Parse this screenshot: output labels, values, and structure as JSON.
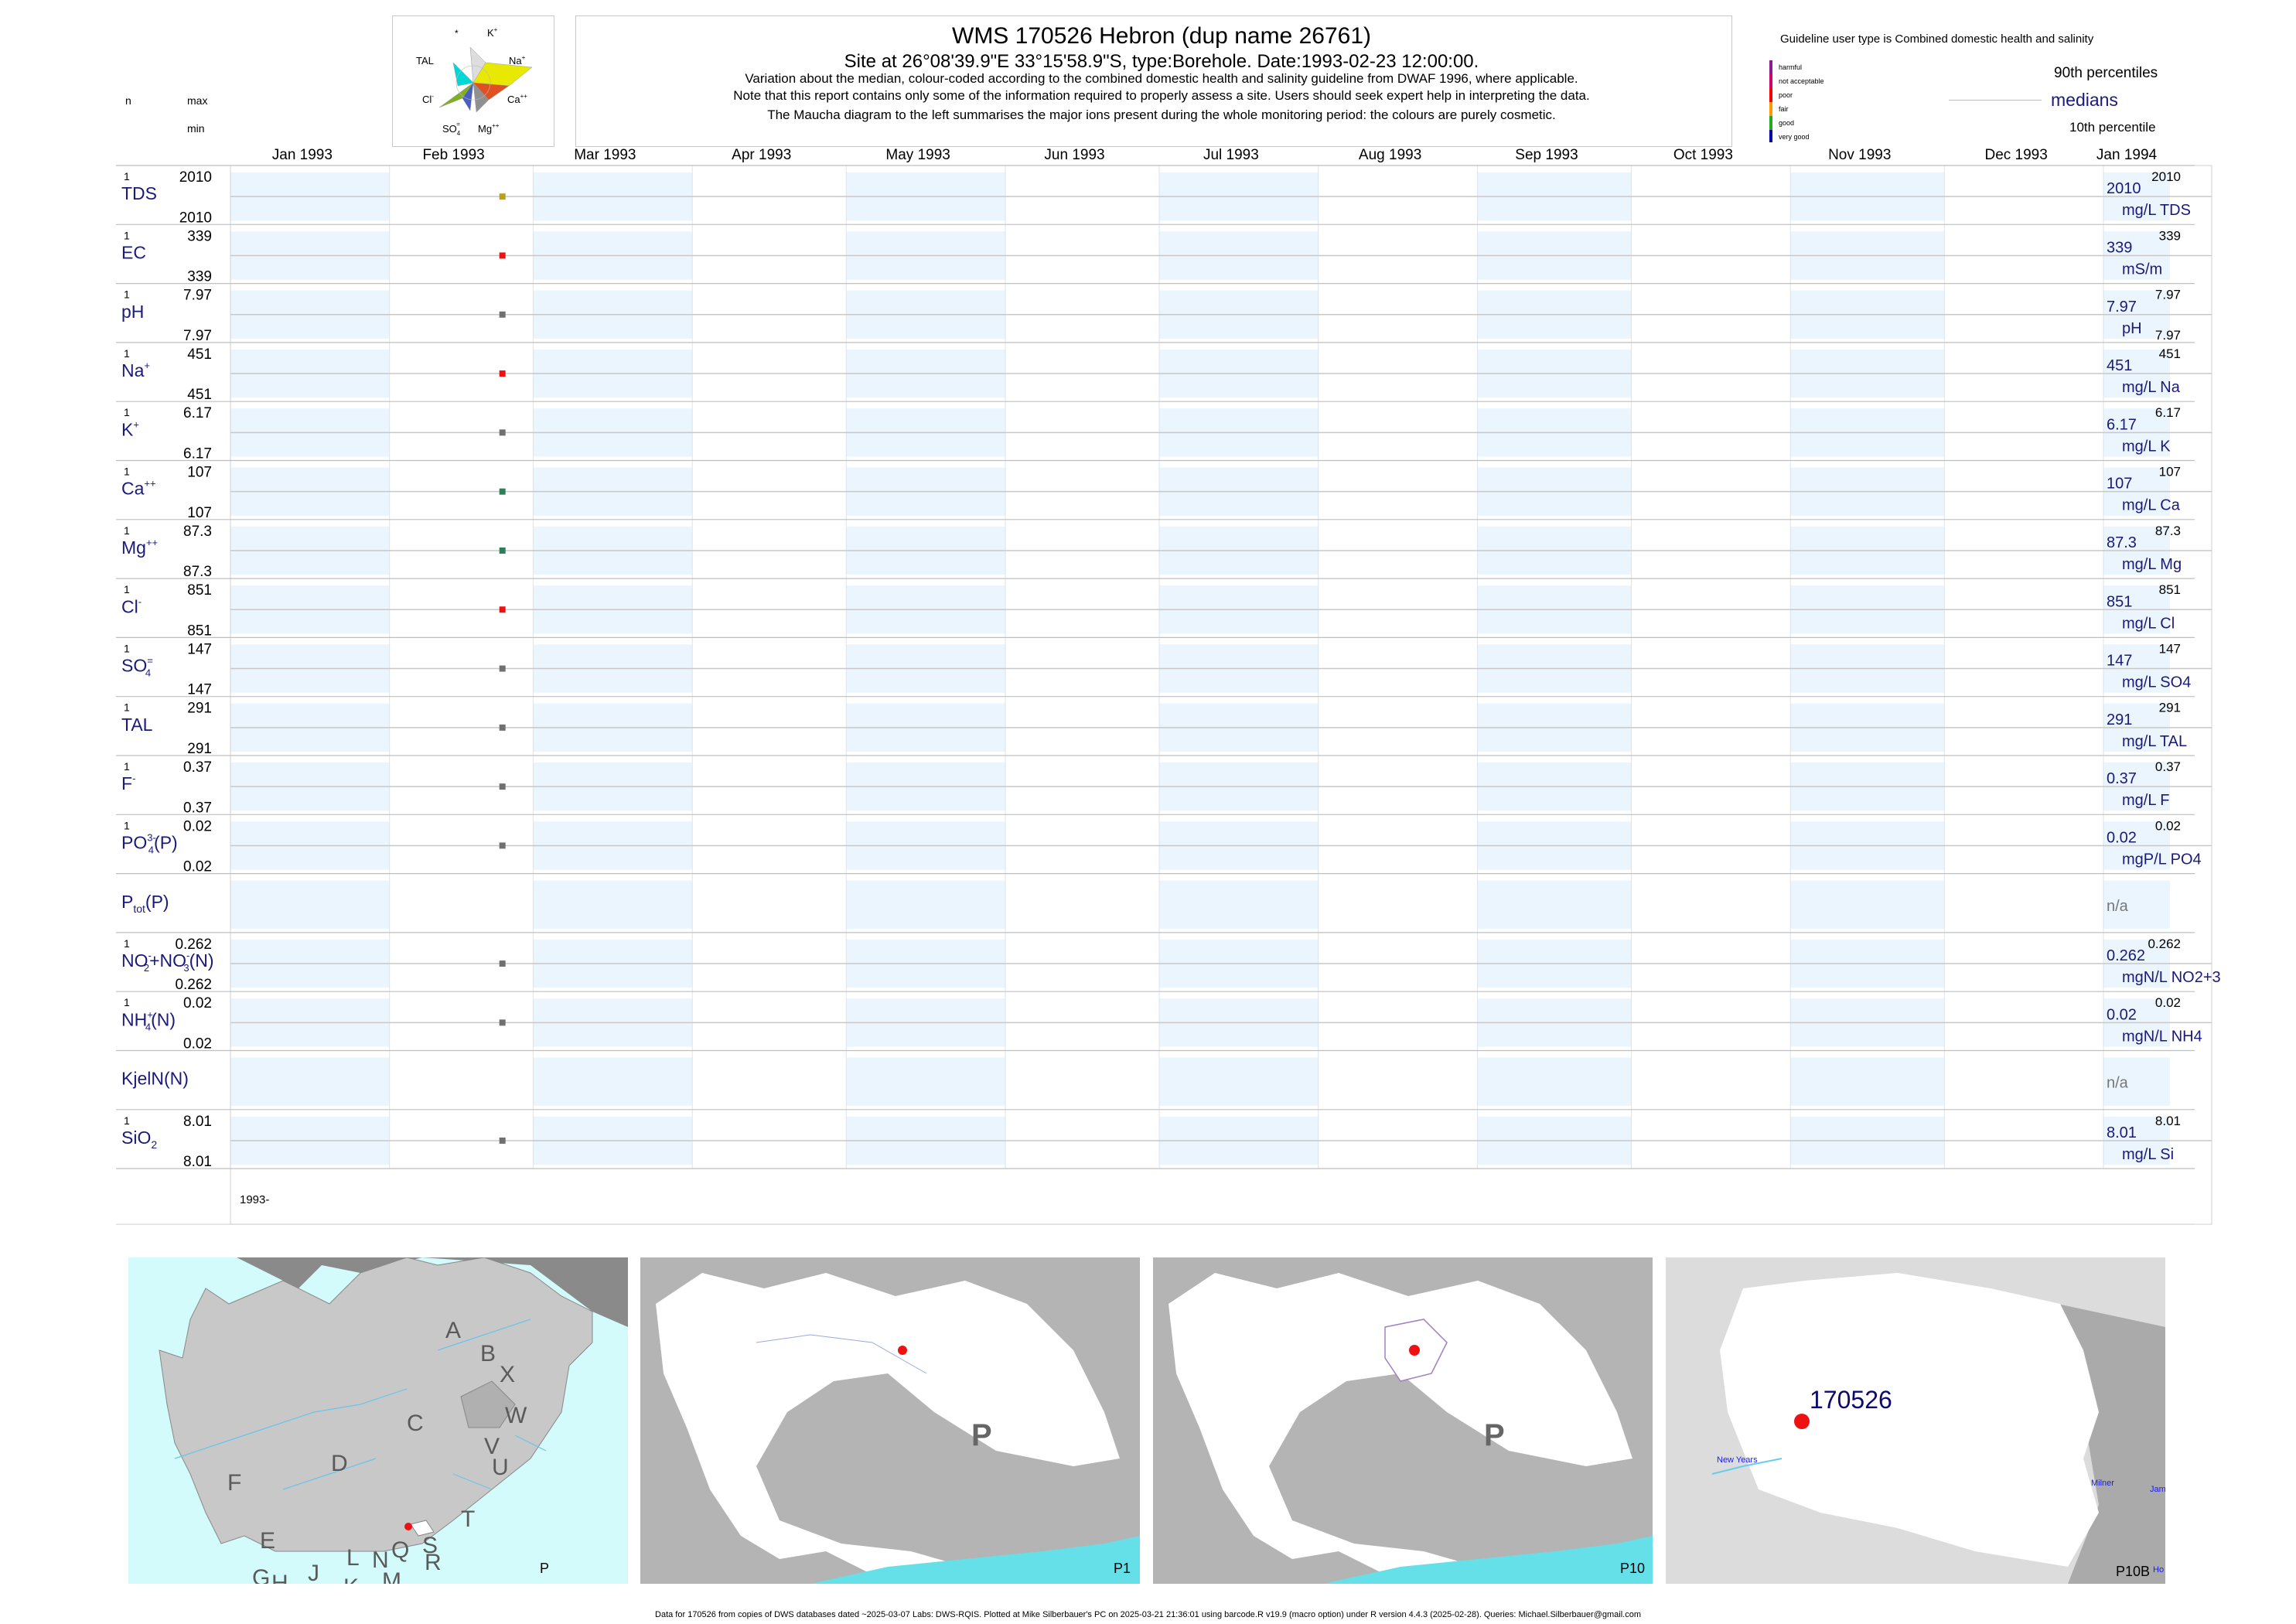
{
  "header": {
    "title": "WMS 170526  Hebron (dup name 26761)",
    "subtitle": "Site at 26°08'39.9\"E 33°15'58.9\"S, type:Borehole. Date:1993-02-23 12:00:00.",
    "note1": "Variation about the median,  colour-coded according to the combined domestic health and salinity guideline from DWAF 1996, where applicable.",
    "note2": "Note that this report contains only some of the information required to properly assess a site. Users should seek expert help in interpreting the data.",
    "note3": "The Maucha diagram to the left summarises the major ions present during the whole monitoring period: the colours are purely cosmetic."
  },
  "left_header": {
    "n": "n",
    "max": "max",
    "min": "min"
  },
  "maucha": {
    "star": "*",
    "k": "K",
    "tal": "TAL",
    "na": "Na",
    "cl": "Cl",
    "ca": "Ca",
    "so4": "SO",
    "mg": "Mg"
  },
  "guideline": {
    "title": "Guideline user type is Combined domestic health and salinity",
    "levels": [
      "harmful",
      "not acceptable",
      "poor",
      "fair",
      "good",
      "very good"
    ],
    "colors": [
      "#8e1a8e",
      "#d0006f",
      "#ff0000",
      "#ff9900",
      "#22aa22",
      "#0000aa"
    ],
    "p90": "90th percentiles",
    "medians": "medians",
    "p10": "10th percentile"
  },
  "chart_data": {
    "type": "scatter",
    "date": "1993-02-23",
    "x_range": [
      "1993-01-01",
      "1994-01-01"
    ],
    "months": [
      "Jan 1993",
      "Feb 1993",
      "Mar 1993",
      "Apr 1993",
      "May 1993",
      "Jun 1993",
      "Jul 1993",
      "Aug 1993",
      "Sep 1993",
      "Oct 1993",
      "Nov 1993",
      "Dec 1993",
      "Jan 1994"
    ],
    "year_label": "1993-",
    "rows": [
      {
        "name": "TDS",
        "sup": "",
        "sub": "",
        "n": "1",
        "max": "2010",
        "min": "2010",
        "median": "2010",
        "p90": "2010",
        "p10": "",
        "unit": "mg/L TDS",
        "color": "#b8a020"
      },
      {
        "name": "EC",
        "sup": "",
        "sub": "",
        "n": "1",
        "max": "339",
        "min": "339",
        "median": "339",
        "p90": "339",
        "p10": "",
        "unit": "mS/m",
        "color": "#ee1111"
      },
      {
        "name": "pH",
        "sup": "",
        "sub": "",
        "n": "1",
        "max": "7.97",
        "min": "7.97",
        "median": "7.97",
        "p90": "7.97",
        "p10": "7.97",
        "unit": "pH",
        "color": "#707070"
      },
      {
        "name": "Na",
        "sup": "+",
        "sub": "",
        "n": "1",
        "max": "451",
        "min": "451",
        "median": "451",
        "p90": "451",
        "p10": "",
        "unit": "mg/L Na",
        "color": "#ee1111"
      },
      {
        "name": "K",
        "sup": "+",
        "sub": "",
        "n": "1",
        "max": "6.17",
        "min": "6.17",
        "median": "6.17",
        "p90": "6.17",
        "p10": "",
        "unit": "mg/L K",
        "color": "#707070"
      },
      {
        "name": "Ca",
        "sup": "++",
        "sub": "",
        "n": "1",
        "max": "107",
        "min": "107",
        "median": "107",
        "p90": "107",
        "p10": "",
        "unit": "mg/L Ca",
        "color": "#2e7d5b"
      },
      {
        "name": "Mg",
        "sup": "++",
        "sub": "",
        "n": "1",
        "max": "87.3",
        "min": "87.3",
        "median": "87.3",
        "p90": "87.3",
        "p10": "",
        "unit": "mg/L Mg",
        "color": "#2e7d5b"
      },
      {
        "name": "Cl",
        "sup": "-",
        "sub": "",
        "n": "1",
        "max": "851",
        "min": "851",
        "median": "851",
        "p90": "851",
        "p10": "",
        "unit": "mg/L Cl",
        "color": "#ee1111"
      },
      {
        "name": "SO",
        "sup": "=",
        "sub": "4",
        "n": "1",
        "max": "147",
        "min": "147",
        "median": "147",
        "p90": "147",
        "p10": "",
        "unit": "mg/L SO4",
        "color": "#707070"
      },
      {
        "name": "TAL",
        "sup": "",
        "sub": "",
        "n": "1",
        "max": "291",
        "min": "291",
        "median": "291",
        "p90": "291",
        "p10": "",
        "unit": "mg/L TAL",
        "color": "#707070"
      },
      {
        "name": "F",
        "sup": "-",
        "sub": "",
        "n": "1",
        "max": "0.37",
        "min": "0.37",
        "median": "0.37",
        "p90": "0.37",
        "p10": "",
        "unit": "mg/L F",
        "color": "#707070"
      },
      {
        "name": "PO",
        "sup": "3-",
        "sub": "4",
        "suffix": "(P)",
        "n": "1",
        "max": "0.02",
        "min": "0.02",
        "median": "0.02",
        "p90": "0.02",
        "p10": "",
        "unit": "mgP/L PO4",
        "color": "#707070"
      },
      {
        "name": "P",
        "sup": "",
        "sub": "tot",
        "suffix": "(P)",
        "n": "",
        "max": "",
        "min": "",
        "median": "n/a",
        "p90": "",
        "p10": "",
        "unit": "",
        "color": ""
      },
      {
        "name": "NO",
        "sup": "-",
        "sub": "2",
        "suffix": "+NO",
        "sup2": "-",
        "sub2": "3",
        "suffix2": "(N)",
        "n": "1",
        "max": "0.262",
        "min": "0.262",
        "median": "0.262",
        "p90": "0.262",
        "p10": "",
        "unit": "mgN/L NO2+3",
        "color": "#707070"
      },
      {
        "name": "NH",
        "sup": "+",
        "sub": "4",
        "suffix": "(N)",
        "n": "1",
        "max": "0.02",
        "min": "0.02",
        "median": "0.02",
        "p90": "0.02",
        "p10": "",
        "unit": "mgN/L NH4",
        "color": "#707070"
      },
      {
        "name": "KjelN(N)",
        "sup": "",
        "sub": "",
        "n": "",
        "max": "",
        "min": "",
        "median": "n/a",
        "p90": "",
        "p10": "",
        "unit": "",
        "color": ""
      },
      {
        "name": "SiO",
        "sup": "",
        "sub": "2",
        "n": "1",
        "max": "8.01",
        "min": "8.01",
        "median": "8.01",
        "p90": "8.01",
        "p10": "",
        "unit": "mg/L Si",
        "color": "#707070"
      }
    ]
  },
  "maps": {
    "letters": [
      "A",
      "B",
      "X",
      "W",
      "C",
      "V",
      "U",
      "D",
      "T",
      "F",
      "E",
      "L",
      "N",
      "Q",
      "S",
      "R",
      "G",
      "H",
      "J",
      "K",
      "M"
    ],
    "m1_corner": "P",
    "m2_big": "P",
    "m2_corner": "P1",
    "m3_big": "P",
    "m3_corner": "P10",
    "m4_site": "170526",
    "m4_newyears": "New Years",
    "m4_milner": "Milner",
    "m4_jam": "Jam",
    "m4_ho": "Ho",
    "m4_corner": "P10B"
  },
  "footer": "Data for 170526 from copies of DWS databases dated ~2025-03-07 Labs: DWS-RQIS. Plotted at Mike Silberbauer's PC on 2025-03-21 21:36:01 using barcode.R v19.9 (macro option) under R version 4.4.3 (2025-02-28). Queries: Michael.Silberbauer@gmail.com"
}
